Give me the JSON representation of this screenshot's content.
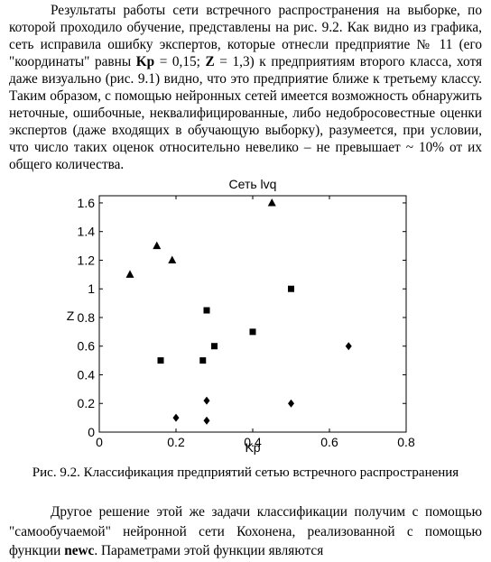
{
  "paragraph1": {
    "part1": "Результаты работы сети встречного распространения на выборке, по которой проходило обучение, представлены на рис. 9.2. Как видно из графика, сеть исправила ошибку экспертов, которые отнесли предприятие № 11 (его \"координаты\" равны ",
    "kp_label": "Kp",
    "part2": " = 0,15; ",
    "z_label": "Z",
    "part3": " = 1,3) к предприятиям второго класса, хотя даже визуально (рис. 9.1) видно, что это предприятие ближе к третьему классу. Таким образом, с помощью нейронных сетей имеется возможность обнаружить неточные, ошибочные, неквалифицированные, либо недобросовестные оценки экспертов (даже входящих в обучающую выборку), разумеется, при условии, что число таких оценок относительно невелико – не превышает ~ 10% от их общего количества."
  },
  "chart_data": {
    "type": "scatter",
    "title": "Сеть lvq",
    "xlabel": "Kp",
    "ylabel": "Z",
    "xlim": [
      0,
      0.8
    ],
    "ylim": [
      0,
      1.65
    ],
    "xticks": [
      "0",
      "0.2",
      "0.4",
      "0.6",
      "0.8"
    ],
    "yticks": [
      "0",
      "0.2",
      "0.4",
      "0.6",
      "0.8",
      "1",
      "1.2",
      "1.4",
      "1.6"
    ],
    "grid": false,
    "series": [
      {
        "marker": "triangle",
        "color": "#000000",
        "points": [
          [
            0.08,
            1.1
          ],
          [
            0.15,
            1.3
          ],
          [
            0.19,
            1.2
          ],
          [
            0.45,
            1.6
          ]
        ]
      },
      {
        "marker": "square",
        "color": "#000000",
        "points": [
          [
            0.16,
            0.5
          ],
          [
            0.27,
            0.5
          ],
          [
            0.28,
            0.85
          ],
          [
            0.3,
            0.6
          ],
          [
            0.4,
            0.7
          ],
          [
            0.5,
            1.0
          ]
        ]
      },
      {
        "marker": "diamond",
        "color": "#000000",
        "points": [
          [
            0.2,
            0.1
          ],
          [
            0.28,
            0.08
          ],
          [
            0.28,
            0.22
          ],
          [
            0.5,
            0.2
          ],
          [
            0.65,
            0.6
          ]
        ]
      }
    ]
  },
  "caption": "Рис. 9.2. Классификация предприятий сетью встречного распространения",
  "paragraph2": {
    "part1": "Другое решение этой же задачи классификации получим с помощью \"самообучаемой\" нейронной сети Кохонена, реализованной с помощью функции ",
    "func": "newc",
    "part2": ". Параметрами этой функции являются"
  }
}
